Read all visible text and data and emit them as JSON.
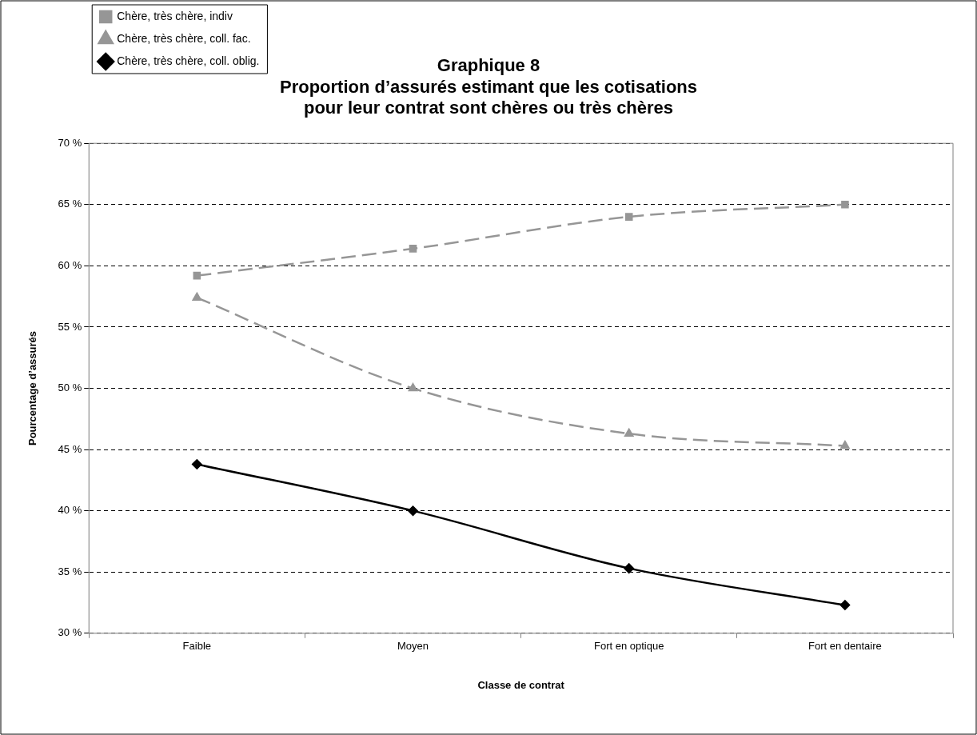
{
  "chart_data": {
    "type": "line",
    "title": "Graphique 8\nProportion d’assurés estimant que les cotisations\npour leur contrat sont chères ou très chères",
    "xlabel": "Classe de contrat",
    "ylabel": "Pourcentage d’assurés",
    "categories": [
      "Faible",
      "Moyen",
      "Fort en optique",
      "Fort en dentaire"
    ],
    "series": [
      {
        "name": "Chère, très chère, indiv",
        "color": "#969696",
        "marker": "square",
        "line_style": "dashed",
        "values": [
          59.2,
          61.4,
          64.0,
          65.0
        ]
      },
      {
        "name": "Chère, très chère, coll. fac.",
        "color": "#969696",
        "marker": "triangle",
        "line_style": "dashed",
        "values": [
          57.4,
          50.0,
          46.3,
          45.3
        ]
      },
      {
        "name": "Chère, très chère, coll. oblig.",
        "color": "#000000",
        "marker": "diamond",
        "line_style": "solid",
        "values": [
          43.8,
          40.0,
          35.3,
          32.3
        ]
      }
    ],
    "ylim": [
      30,
      70
    ],
    "yticks": [
      {
        "value": 30,
        "label": "30 %"
      },
      {
        "value": 35,
        "label": "35 %"
      },
      {
        "value": 40,
        "label": "40 %"
      },
      {
        "value": 45,
        "label": "45 %"
      },
      {
        "value": 50,
        "label": "50 %"
      },
      {
        "value": 55,
        "label": "55 %"
      },
      {
        "value": 60,
        "label": "60 %"
      },
      {
        "value": 65,
        "label": "65 %"
      },
      {
        "value": 70,
        "label": "70 %"
      }
    ],
    "grid": "y",
    "legend": "top left"
  }
}
